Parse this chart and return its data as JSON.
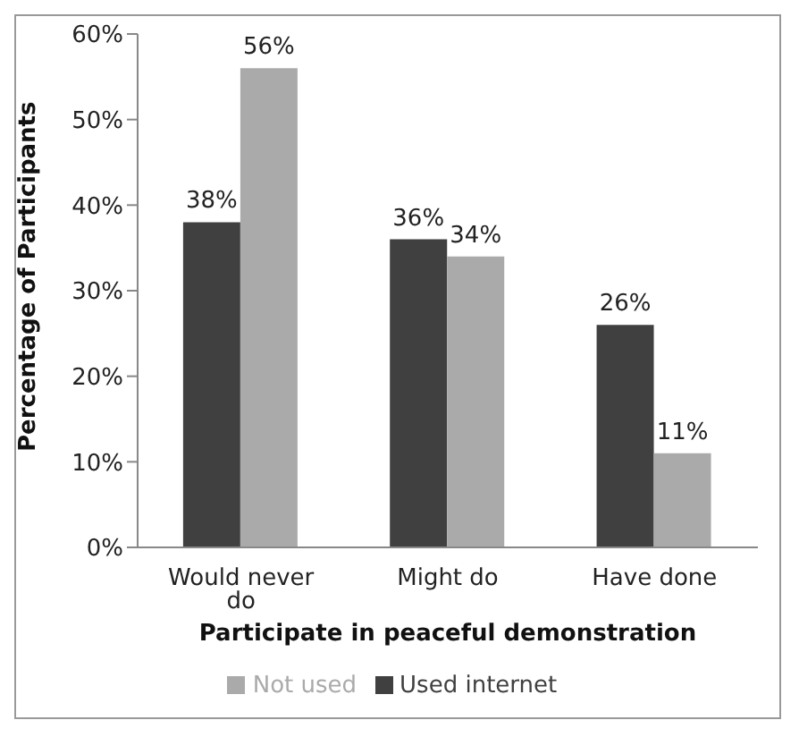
{
  "chart_data": {
    "type": "bar",
    "ylabel": "Percentage of Participants",
    "xlabel": "Participate in peaceful demonstration",
    "categories": [
      "Would never do",
      "Might do",
      "Have done"
    ],
    "series": [
      {
        "name": "Used internet",
        "color": "#404040",
        "values": [
          38,
          36,
          26
        ],
        "value_labels": [
          "38%",
          "36%",
          "26%"
        ]
      },
      {
        "name": "Not used",
        "color": "#aaaaaa",
        "values": [
          56,
          34,
          11
        ],
        "value_labels": [
          "56%",
          "34%",
          "11%"
        ]
      }
    ],
    "ylim": [
      0,
      60
    ],
    "yticks": [
      {
        "value": 0,
        "label": "0%"
      },
      {
        "value": 10,
        "label": "10%"
      },
      {
        "value": 20,
        "label": "20%"
      },
      {
        "value": 30,
        "label": "30%"
      },
      {
        "value": 40,
        "label": "40%"
      },
      {
        "value": 50,
        "label": "50%"
      },
      {
        "value": 60,
        "label": "60%"
      }
    ],
    "grid": false,
    "legend": "bottom"
  }
}
